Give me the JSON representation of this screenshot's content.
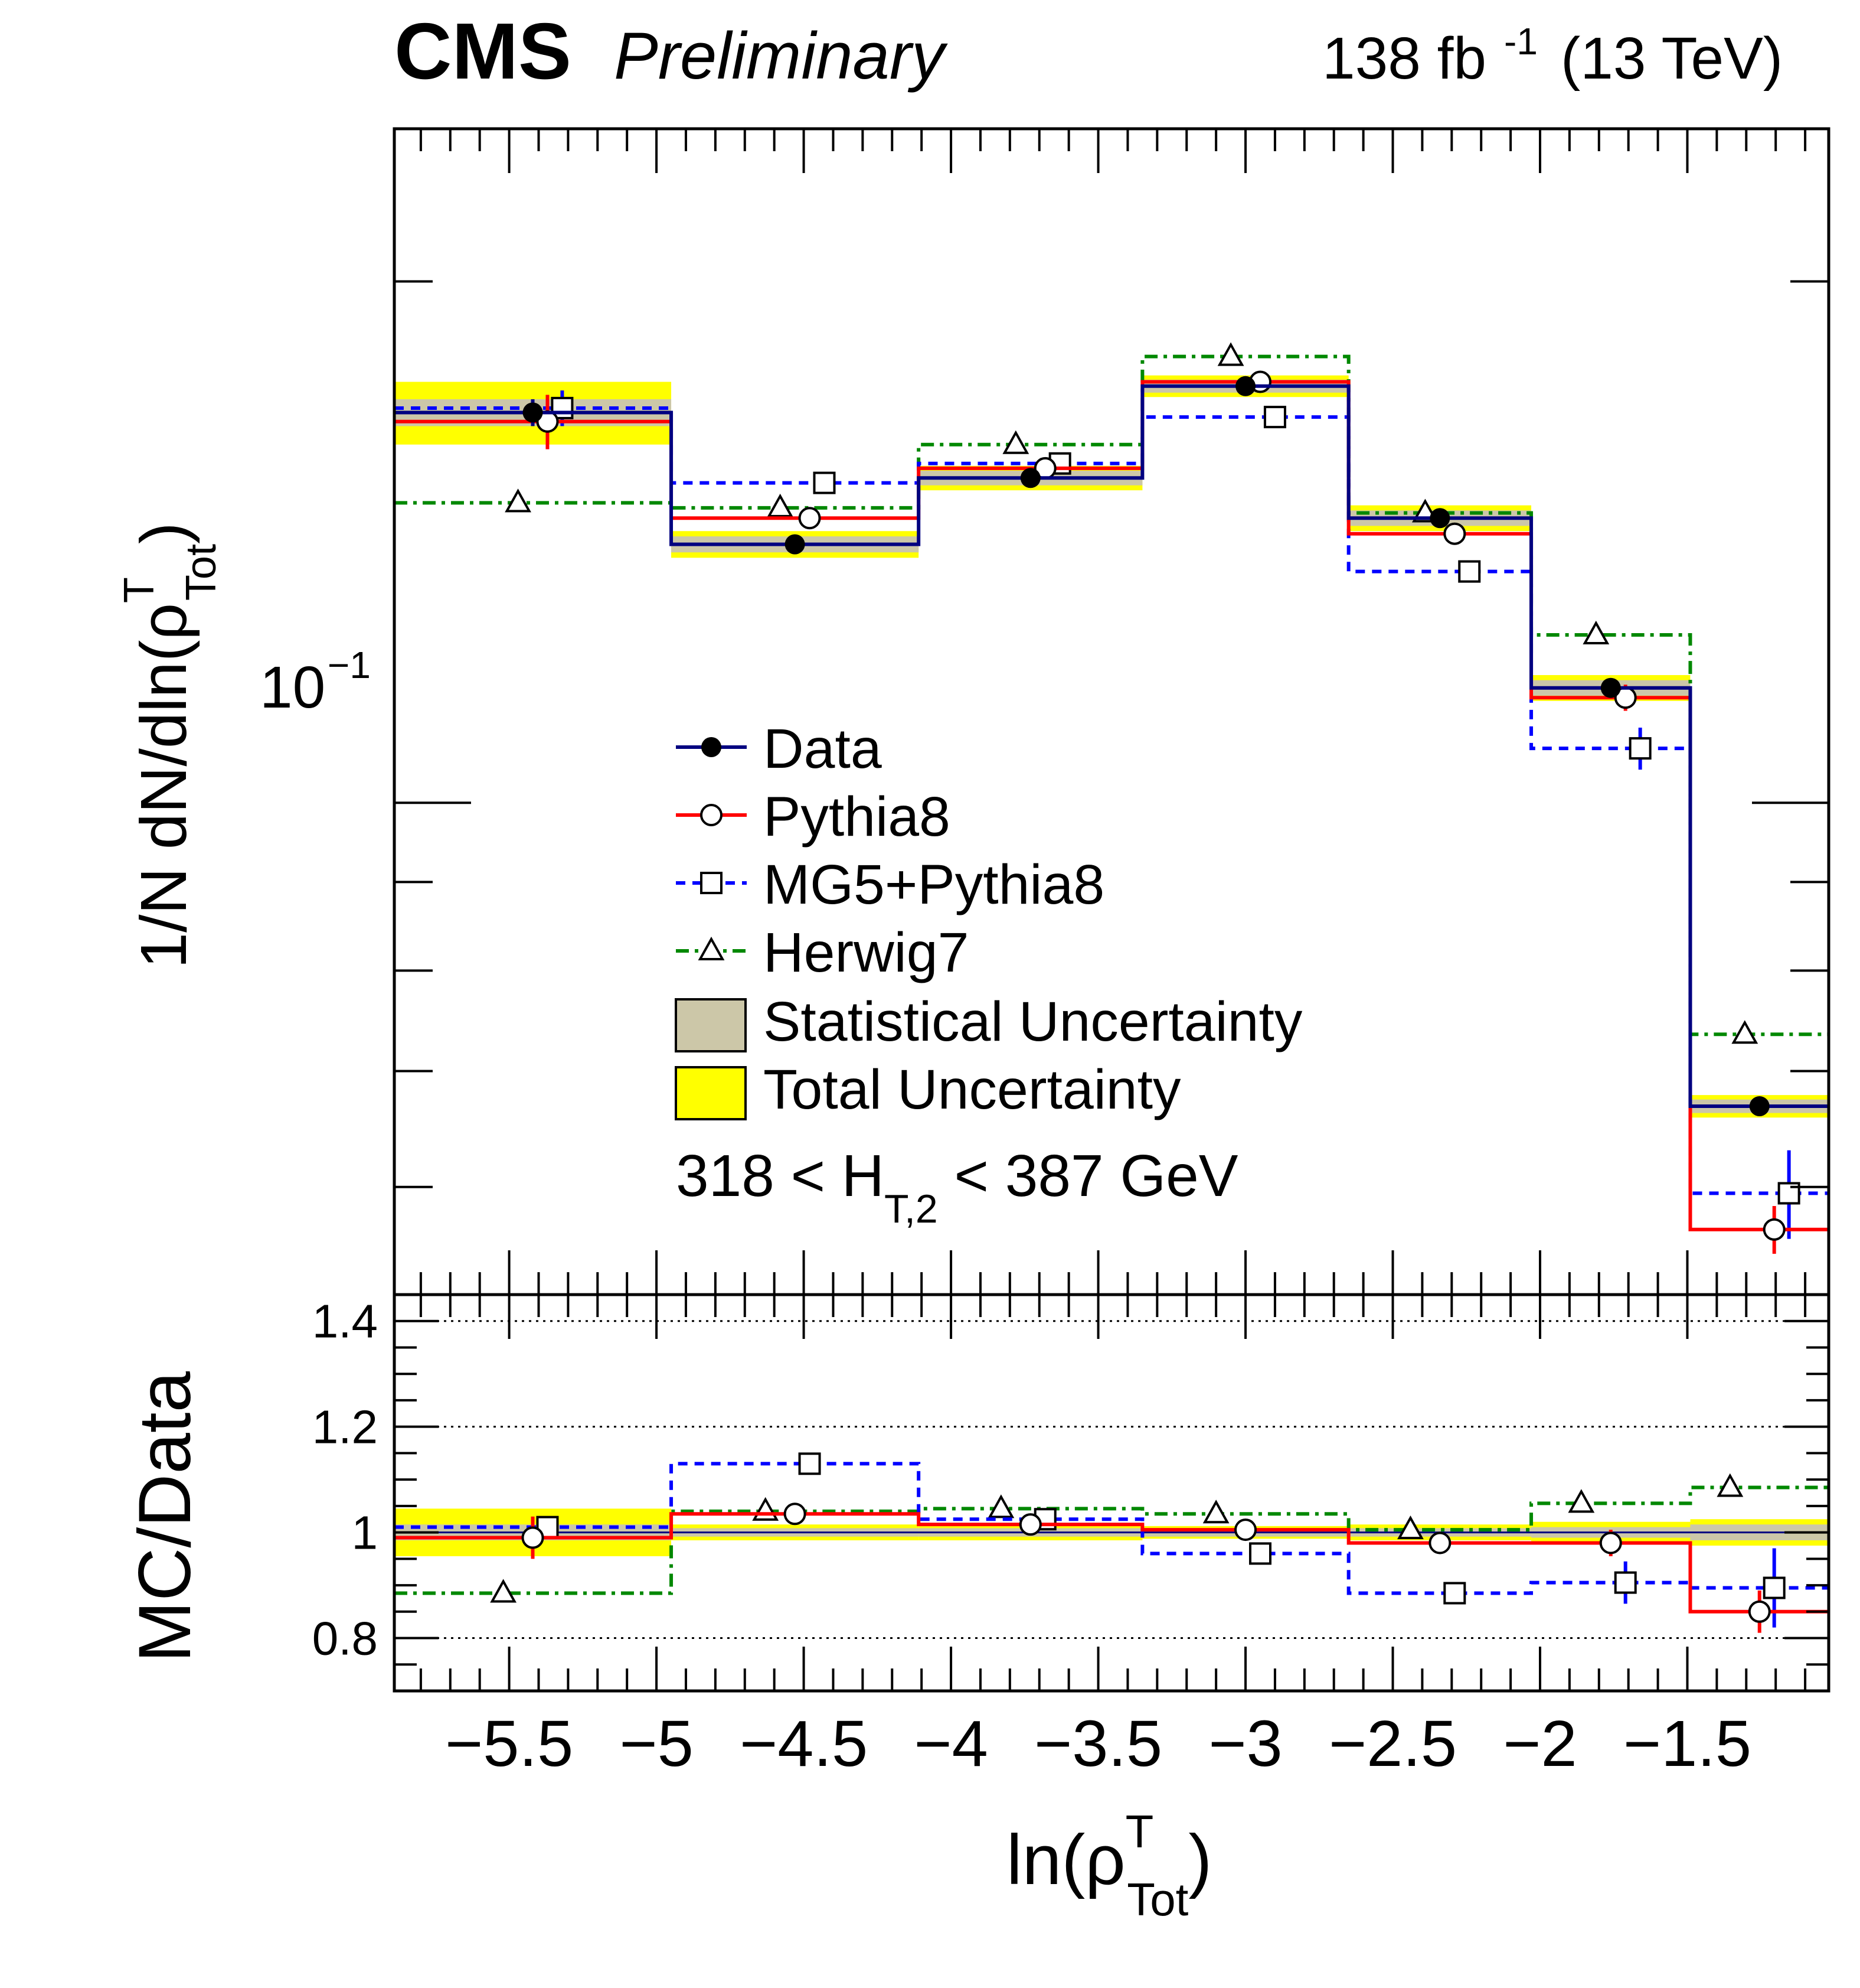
{
  "header": {
    "experiment": "CMS",
    "status": "Preliminary",
    "lumi": "138 fb",
    "lumi_exp": "-1",
    "energy": "(13 TeV)"
  },
  "chart_data": [
    {
      "type": "line",
      "panel": "main",
      "ylabel_main": "1/N dN/dln(ρ",
      "ylabel_sup": "T",
      "ylabel_sub": "Tot",
      "ylabel_close": ")",
      "yscale": "log",
      "ylim": [
        0.052,
        0.245
      ],
      "xlim": [
        -5.89,
        -1.02
      ],
      "ytick_label_base": "10",
      "ytick_label_exp": "−1",
      "bin_edges": [
        -5.89,
        -4.95,
        -4.11,
        -3.35,
        -2.65,
        -2.03,
        -1.49,
        -1.02
      ],
      "series": [
        {
          "name": "Data",
          "color": "#000080",
          "style": "solid",
          "marker": "filled-circle",
          "values": [
            0.168,
            0.141,
            0.154,
            0.174,
            0.146,
            0.1165,
            0.0668
          ],
          "stat_unc": [
            0.003,
            0.0015,
            0.0015,
            0.0015,
            0.0015,
            0.0012,
            0.0006
          ],
          "tot_unc": [
            0.007,
            0.0025,
            0.0025,
            0.0025,
            0.0025,
            0.002,
            0.001
          ]
        },
        {
          "name": "Pythia8",
          "color": "#ff0000",
          "style": "solid",
          "marker": "open-circle",
          "values": [
            0.166,
            0.146,
            0.156,
            0.175,
            0.143,
            0.115,
            0.0567
          ],
          "err": [
            0.006,
            0.002,
            0.002,
            0.002,
            0.002,
            0.002,
            0.0018
          ]
        },
        {
          "name": "MG5+Pythia8",
          "color": "#0000ff",
          "style": "dashed",
          "marker": "open-square",
          "values": [
            0.169,
            0.153,
            0.157,
            0.167,
            0.136,
            0.1075,
            0.0595
          ],
          "err": [
            0.004,
            0.002,
            0.002,
            0.002,
            0.002,
            0.003,
            0.0035
          ]
        },
        {
          "name": "Herwig7",
          "color": "#008800",
          "style": "dash-dot",
          "marker": "open-triangle",
          "values": [
            0.149,
            0.148,
            0.161,
            0.181,
            0.147,
            0.125,
            0.0735
          ],
          "err": [
            0,
            0,
            0,
            0,
            0,
            0,
            0
          ]
        }
      ],
      "legend": {
        "placement": "center",
        "entries": [
          "Data",
          "Pythia8",
          "MG5+Pythia8",
          "Herwig7",
          "Statistical Uncertainty",
          "Total Uncertainty"
        ]
      },
      "band_colors": {
        "stat": "#ccc7a8",
        "total": "#ffff00"
      },
      "annotation": {
        "left": "318 < H",
        "sub": "T,2",
        "right": " < 387 GeV"
      }
    },
    {
      "type": "line",
      "panel": "ratio",
      "ylabel": "MC/Data",
      "xlabel_base": "ln(ρ",
      "xlabel_sup": "T",
      "xlabel_sub": "Tot",
      "xlabel_close": ")",
      "ylim": [
        0.7,
        1.45
      ],
      "xlim": [
        -5.89,
        -1.02
      ],
      "xticks": [
        -5.5,
        -5,
        -4.5,
        -4,
        -3.5,
        -3,
        -2.5,
        -2,
        -1.5
      ],
      "xtick_labels": [
        "−5.5",
        "−5",
        "−4.5",
        "−4",
        "−3.5",
        "−3",
        "−2.5",
        "−2",
        "−1.5"
      ],
      "yticks": [
        0.8,
        1,
        1.2,
        1.4
      ],
      "ytick_labels": [
        "0.8",
        "1",
        "1.2",
        "1.4"
      ],
      "reference_lines": [
        0.8,
        1.2,
        1.4
      ],
      "series": [
        {
          "name": "Pythia8",
          "values": [
            0.99,
            1.035,
            1.015,
            1.005,
            0.98,
            0.98,
            0.85
          ],
          "err": [
            0.04,
            0.015,
            0.01,
            0.01,
            0.015,
            0.025,
            0.04
          ]
        },
        {
          "name": "MG5+Pythia8",
          "values": [
            1.01,
            1.13,
            1.025,
            0.96,
            0.885,
            0.905,
            0.895
          ],
          "err": [
            0.02,
            0.01,
            0.01,
            0.01,
            0.015,
            0.04,
            0.075
          ]
        },
        {
          "name": "Herwig7",
          "values": [
            0.885,
            1.04,
            1.045,
            1.035,
            1.005,
            1.055,
            1.085
          ],
          "err": [
            0,
            0,
            0,
            0,
            0,
            0,
            0
          ]
        }
      ],
      "stat_band": [
        0.015,
        0.008,
        0.008,
        0.008,
        0.008,
        0.01,
        0.015
      ],
      "tot_band": [
        0.045,
        0.015,
        0.015,
        0.012,
        0.015,
        0.02,
        0.025
      ]
    }
  ]
}
